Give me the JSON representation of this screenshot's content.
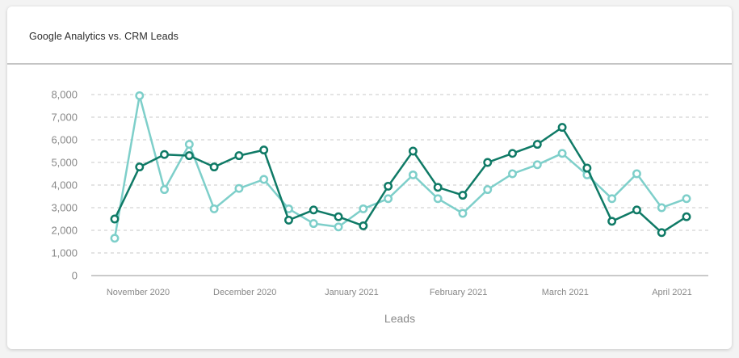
{
  "card": {
    "title": "Google Analytics vs. CRM Leads"
  },
  "chart_data": {
    "type": "line",
    "title": "Google Analytics vs. CRM Leads",
    "xlabel": "Leads",
    "ylabel": "",
    "ylim": [
      0,
      8000
    ],
    "yticks": [
      0,
      1000,
      2000,
      3000,
      4000,
      5000,
      6000,
      7000,
      8000
    ],
    "ytick_labels": [
      "0",
      "1,000",
      "2,000",
      "3,000",
      "4,000",
      "5,000",
      "6,000",
      "7,000",
      "8,000"
    ],
    "x_labels": [
      "November 2020",
      "December 2020",
      "January 2021",
      "February 2021",
      "March 2021",
      "April 2021"
    ],
    "grid": true,
    "legend": "none",
    "series": [
      {
        "color": "#0f7a66",
        "values": [
          2500,
          4800,
          5350,
          5300,
          4800,
          5300,
          5550,
          2450,
          2900,
          2600,
          2200,
          3950,
          5500,
          3900,
          3550,
          5000,
          5400,
          5800,
          6550,
          4750,
          2400,
          2900,
          1900,
          2600
        ]
      },
      {
        "color": "#7ecfca",
        "values": [
          1650,
          7950,
          3800,
          5800,
          2950,
          3850,
          4250,
          2950,
          2300,
          2150,
          2950,
          3400,
          4450,
          3400,
          2750,
          3800,
          4500,
          4900,
          5400,
          4450,
          3400,
          4500,
          3000,
          3400
        ]
      }
    ]
  }
}
